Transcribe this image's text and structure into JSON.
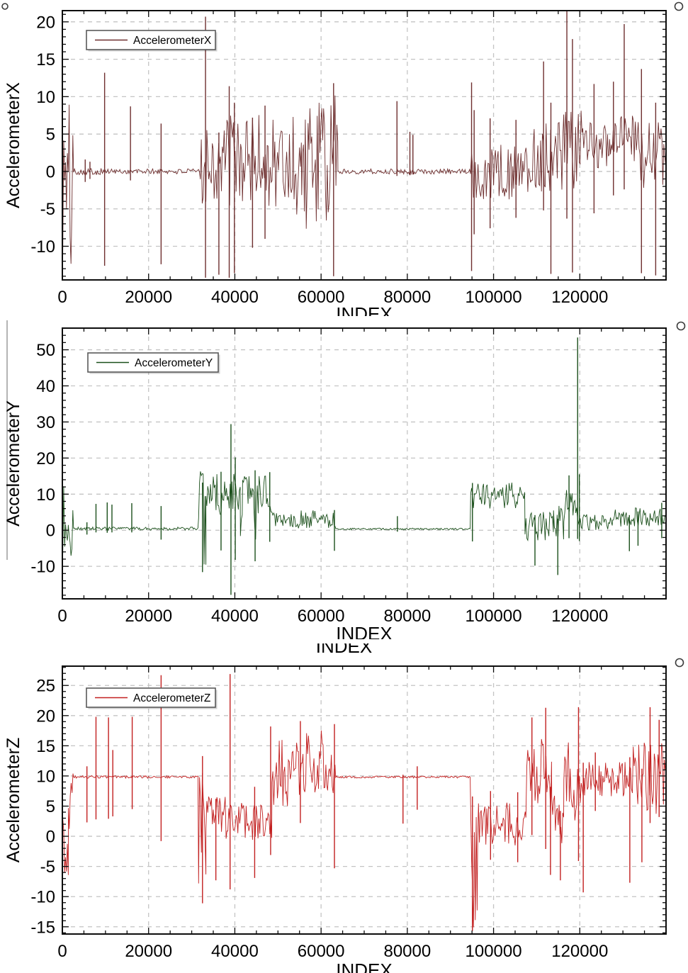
{
  "icons": {
    "corner-circle-icon": "circle-outline"
  },
  "chart_data": [
    {
      "type": "line",
      "series": [
        {
          "name": "AccelerometerX",
          "color": "#6e2f2f"
        }
      ],
      "legend": {
        "label": "AccelerometerX",
        "position": "top-left"
      },
      "xlabel": "INDEX",
      "ylabel": "AccelerometerX",
      "xlim": [
        0,
        140000
      ],
      "ylim": [
        -14.5,
        21.5
      ],
      "x_ticks": [
        0,
        20000,
        40000,
        60000,
        80000,
        100000,
        120000
      ],
      "x_minor_step": 5000,
      "y_ticks": [
        20,
        15,
        10,
        5,
        0,
        -5,
        -10
      ],
      "y_minor_step": 1,
      "grid": "dashed",
      "envelope_segments": [
        [
          100,
          2600,
          -14.2,
          9.8
        ],
        [
          2600,
          9300,
          -0.45,
          0.45
        ],
        [
          9300,
          31800,
          -0.35,
          0.35
        ],
        [
          31800,
          48000,
          -4.6,
          7.8
        ],
        [
          48000,
          55500,
          -6.5,
          8.5
        ],
        [
          55500,
          62600,
          -8.0,
          9.3
        ],
        [
          62600,
          63900,
          -4.0,
          11.0
        ],
        [
          63900,
          94700,
          -0.35,
          0.35
        ],
        [
          94700,
          107300,
          -3.8,
          3.6
        ],
        [
          107300,
          113300,
          -3.0,
          7.0
        ],
        [
          113300,
          120700,
          -2.6,
          8.6
        ],
        [
          120700,
          126900,
          0.4,
          7.0
        ],
        [
          126900,
          132900,
          0.9,
          7.6
        ],
        [
          132900,
          140000,
          -2.2,
          7.0
        ]
      ],
      "spikes": [
        [
          5300,
          1.6,
          -1.4
        ],
        [
          6400,
          1.3,
          -1.0
        ],
        [
          9800,
          13.2,
          -12.6
        ],
        [
          15800,
          8.7,
          -1.2
        ],
        [
          22900,
          6.4,
          -12.4
        ],
        [
          33200,
          20.7,
          -14.2
        ],
        [
          36300,
          5.2,
          -13.8
        ],
        [
          38700,
          11.4,
          -14.2
        ],
        [
          39900,
          9.2,
          -13.6
        ],
        [
          44100,
          7.2,
          -10.2
        ],
        [
          47000,
          8.8,
          -9.0
        ],
        [
          62900,
          11.8,
          -14.0
        ],
        [
          77600,
          9.4,
          -0.6
        ],
        [
          80600,
          5.3,
          -0.5
        ],
        [
          81300,
          4.9,
          -0.4
        ],
        [
          94900,
          11.9,
          -13.3
        ],
        [
          95500,
          8.2,
          -8.4
        ],
        [
          99200,
          7.1,
          -7.6
        ],
        [
          105200,
          6.9,
          -6.2
        ],
        [
          111600,
          14.7,
          -5.2
        ],
        [
          113300,
          9.2,
          -13.7
        ],
        [
          117000,
          21.4,
          -6.3
        ],
        [
          118300,
          17.7,
          -13.5
        ],
        [
          123300,
          11.7,
          -5.6
        ],
        [
          127800,
          12.0,
          -3.2
        ],
        [
          130300,
          19.7,
          -2.4
        ],
        [
          134300,
          13.7,
          -13.6
        ],
        [
          137600,
          9.2,
          -13.9
        ]
      ]
    },
    {
      "type": "line",
      "series": [
        {
          "name": "AccelerometerY",
          "color": "#1c501c"
        }
      ],
      "legend": {
        "label": "AccelerometerY",
        "position": "top-left"
      },
      "xlabel": "INDEX",
      "ylabel": "AccelerometerY",
      "xlim": [
        0,
        140000
      ],
      "ylim": [
        -19,
        56
      ],
      "x_ticks": [
        0,
        20000,
        40000,
        60000,
        80000,
        100000,
        120000
      ],
      "x_minor_step": 5000,
      "y_ticks": [
        50,
        40,
        30,
        20,
        10,
        0,
        -10
      ],
      "y_minor_step": 2,
      "grid": "dashed",
      "envelope_segments": [
        [
          100,
          2600,
          -9.5,
          13.0
        ],
        [
          2600,
          31600,
          0.0,
          0.9
        ],
        [
          31600,
          33300,
          -10.5,
          16.5
        ],
        [
          33300,
          36400,
          5.0,
          15.6
        ],
        [
          36400,
          37000,
          -5.0,
          8.0
        ],
        [
          37000,
          41300,
          4.6,
          15.8
        ],
        [
          41300,
          41800,
          -4.0,
          8.0
        ],
        [
          41800,
          44400,
          4.8,
          15.4
        ],
        [
          44400,
          45000,
          -6.0,
          8.0
        ],
        [
          45000,
          48600,
          4.6,
          15.2
        ],
        [
          48600,
          63400,
          0.5,
          5.6
        ],
        [
          63400,
          94700,
          0.1,
          0.6
        ],
        [
          94700,
          107300,
          6.0,
          13.4
        ],
        [
          107300,
          113900,
          -2.8,
          5.2
        ],
        [
          113900,
          116300,
          -3.5,
          7.0
        ],
        [
          116300,
          119900,
          2.0,
          12.6
        ],
        [
          119900,
          127600,
          0.0,
          5.0
        ],
        [
          127600,
          140000,
          1.0,
          6.2
        ]
      ],
      "spikes": [
        [
          5700,
          2.2,
          -1.2
        ],
        [
          7800,
          7.3,
          -0.6
        ],
        [
          10400,
          7.7,
          -0.7
        ],
        [
          11500,
          7.1,
          -0.6
        ],
        [
          16100,
          7.5,
          -0.6
        ],
        [
          22900,
          6.7,
          -2.6
        ],
        [
          32500,
          13.2,
          -11.6
        ],
        [
          36800,
          16.2,
          -5.6
        ],
        [
          39100,
          29.4,
          -17.9
        ],
        [
          40100,
          20.2,
          -8.2
        ],
        [
          44700,
          16.6,
          -8.6
        ],
        [
          48100,
          16.1,
          -3.2
        ],
        [
          63100,
          5.6,
          -5.7
        ],
        [
          77700,
          3.9,
          -0.4
        ],
        [
          95100,
          13.1,
          -3.1
        ],
        [
          109600,
          4.2,
          -9.8
        ],
        [
          114900,
          3.2,
          -12.4
        ],
        [
          117500,
          15.2,
          -2.2
        ],
        [
          119500,
          53.4,
          -2.4
        ],
        [
          119900,
          15.5,
          -3.0
        ],
        [
          131500,
          4.2,
          -5.8
        ],
        [
          133500,
          5.2,
          -4.3
        ],
        [
          139000,
          7.6,
          -2.2
        ]
      ]
    },
    {
      "type": "line",
      "series": [
        {
          "name": "AccelerometerZ",
          "color": "#c22020"
        }
      ],
      "legend": {
        "label": "AccelerometerZ",
        "position": "top-left"
      },
      "xlabel": "INDEX",
      "ylabel": "AccelerometerZ",
      "xlim": [
        0,
        140000
      ],
      "ylim": [
        -16.2,
        28.2
      ],
      "x_ticks": [
        0,
        20000,
        40000,
        60000,
        80000,
        100000,
        120000
      ],
      "x_minor_step": 5000,
      "y_ticks": [
        25,
        20,
        15,
        10,
        5,
        0,
        -5,
        -10,
        -15
      ],
      "y_minor_step": 1,
      "grid": "dashed",
      "envelope_segments": [
        [
          100,
          1400,
          -11.3,
          4.0
        ],
        [
          1400,
          2600,
          -2.0,
          16.6
        ],
        [
          2600,
          31600,
          9.62,
          10.05
        ],
        [
          31600,
          33300,
          -8.0,
          13.0
        ],
        [
          33300,
          38800,
          -0.6,
          6.6
        ],
        [
          38800,
          48600,
          -0.6,
          5.6
        ],
        [
          48600,
          55800,
          5.0,
          16.0
        ],
        [
          55800,
          63400,
          6.0,
          18.0
        ],
        [
          63400,
          94700,
          9.65,
          10.0
        ],
        [
          94700,
          96300,
          -15.5,
          5.0
        ],
        [
          96300,
          107500,
          -1.6,
          5.6
        ],
        [
          107500,
          113500,
          2.5,
          16.5
        ],
        [
          113500,
          116300,
          -1.2,
          7.2
        ],
        [
          116300,
          121100,
          1.5,
          15.8
        ],
        [
          121100,
          127100,
          6.6,
          12.4
        ],
        [
          127100,
          132400,
          6.6,
          12.4
        ],
        [
          132400,
          140000,
          3.6,
          15.8
        ]
      ],
      "spikes": [
        [
          5700,
          11.6,
          2.3
        ],
        [
          7800,
          19.8,
          2.8
        ],
        [
          10700,
          19.7,
          2.9
        ],
        [
          11700,
          14.3,
          3.3
        ],
        [
          16200,
          19.8,
          4.5
        ],
        [
          22900,
          26.7,
          -0.8
        ],
        [
          32500,
          13.3,
          -11.1
        ],
        [
          35600,
          6.2,
          -7.3
        ],
        [
          38900,
          26.9,
          -8.8
        ],
        [
          44600,
          8.2,
          -6.9
        ],
        [
          48300,
          18.2,
          -3.1
        ],
        [
          55200,
          19.1,
          2.2
        ],
        [
          63100,
          18.6,
          -5.3
        ],
        [
          79000,
          10.2,
          2.1
        ],
        [
          82300,
          11.6,
          4.4
        ],
        [
          95100,
          6.6,
          -15.7
        ],
        [
          99300,
          7.5,
          -3.9
        ],
        [
          105600,
          7.3,
          -4.3
        ],
        [
          108900,
          19.7,
          0.2
        ],
        [
          112100,
          21.3,
          -2.1
        ],
        [
          113200,
          8.2,
          -6.4
        ],
        [
          115500,
          4.2,
          -7.3
        ],
        [
          119700,
          21.4,
          -4.1
        ],
        [
          120800,
          12.2,
          -9.3
        ],
        [
          123600,
          13.9,
          4.2
        ],
        [
          131600,
          13.1,
          -7.7
        ],
        [
          134400,
          11.2,
          -4.3
        ],
        [
          136300,
          21.4,
          2.2
        ],
        [
          138400,
          19.3,
          3.2
        ]
      ]
    }
  ]
}
